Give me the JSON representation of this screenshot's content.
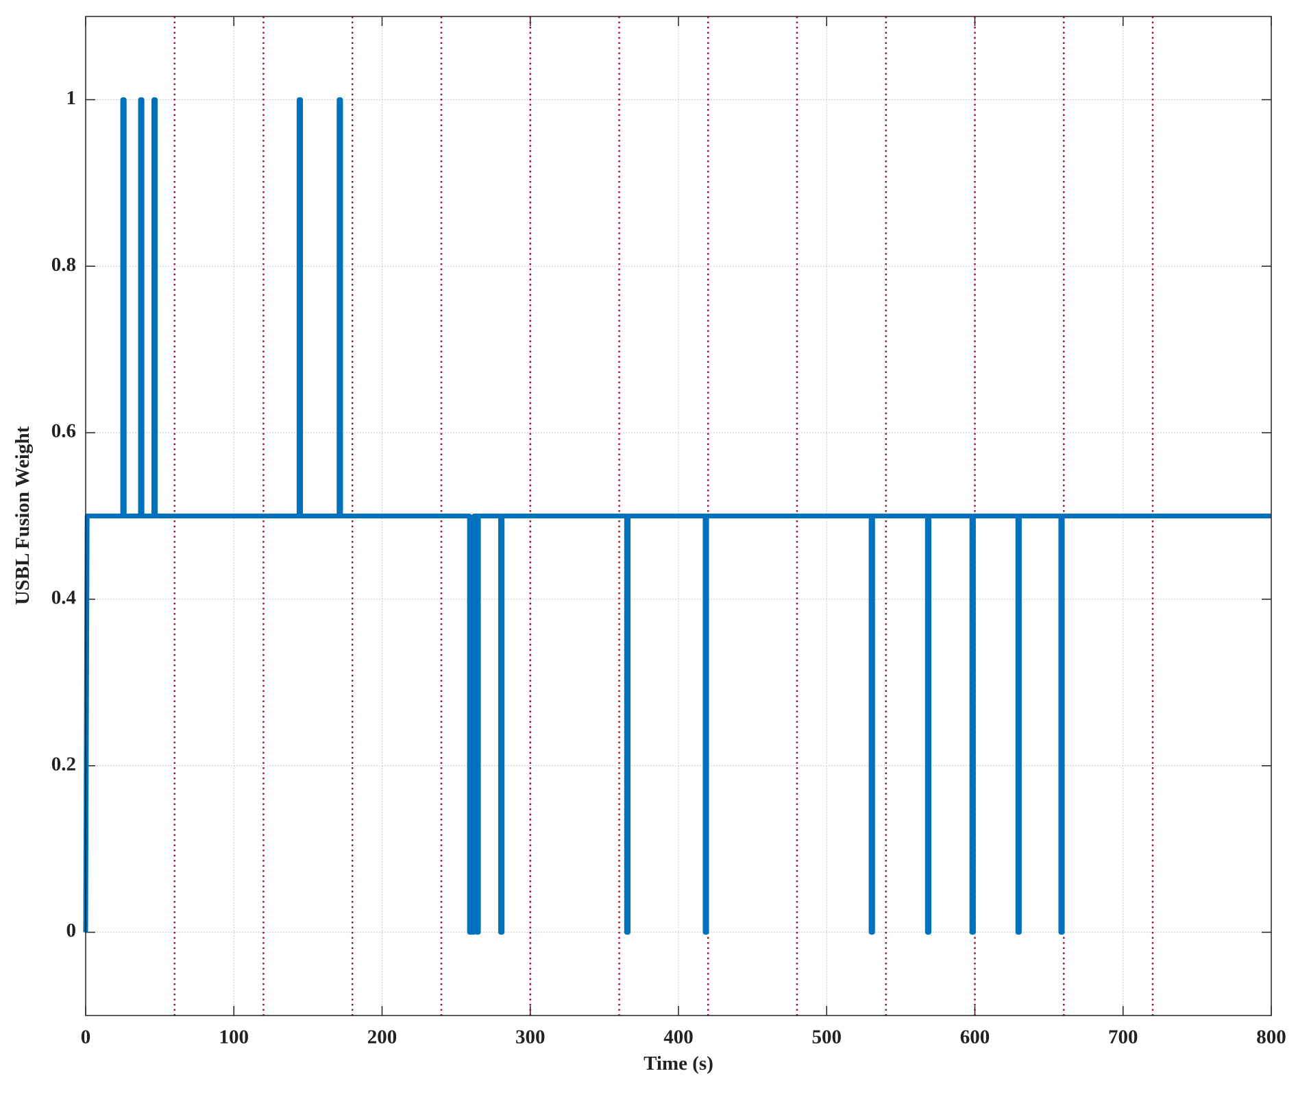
{
  "chart_data": {
    "type": "line",
    "xlabel": "Time (s)",
    "ylabel": "USBL Fusion Weight",
    "xlim": [
      0,
      800
    ],
    "ylim": [
      -0.1,
      1.1
    ],
    "xticks": [
      0,
      100,
      200,
      300,
      400,
      500,
      600,
      700,
      800
    ],
    "yticks": [
      0,
      0.2,
      0.4,
      0.6,
      0.8,
      1
    ],
    "grid": true,
    "vlines": [
      60,
      120,
      180,
      240,
      300,
      360,
      420,
      480,
      540,
      600,
      660,
      720
    ],
    "vline_color": "#a2142f",
    "series": [
      {
        "color": "#0072bd",
        "x": [
          0,
          1,
          25,
          25,
          26,
          26,
          37,
          37,
          38,
          38,
          46,
          46,
          47,
          47,
          144,
          144,
          145,
          145,
          171,
          171,
          172,
          172,
          259,
          259,
          262,
          262,
          264,
          264,
          265,
          265,
          280,
          280,
          281,
          281,
          365,
          365,
          366,
          366,
          418,
          418,
          419,
          419,
          530,
          530,
          531,
          531,
          568,
          568,
          569,
          569,
          598,
          598,
          599,
          599,
          629,
          629,
          630,
          630,
          658,
          658,
          659,
          659,
          800
        ],
        "values": [
          0,
          0.5,
          0.5,
          1,
          1,
          0.5,
          0.5,
          1,
          1,
          0.5,
          0.5,
          1,
          1,
          0.5,
          0.5,
          1,
          1,
          0.5,
          0.5,
          1,
          1,
          0.5,
          0.5,
          0,
          0,
          0.5,
          0.5,
          0,
          0,
          0.5,
          0.5,
          0,
          0,
          0.5,
          0.5,
          0,
          0,
          0.5,
          0.5,
          0,
          0,
          0.5,
          0.5,
          0,
          0,
          0.5,
          0.5,
          0,
          0,
          0.5,
          0.5,
          0,
          0,
          0.5,
          0.5,
          0,
          0,
          0.5,
          0.5,
          0,
          0,
          0.5,
          0.5
        ]
      }
    ]
  }
}
